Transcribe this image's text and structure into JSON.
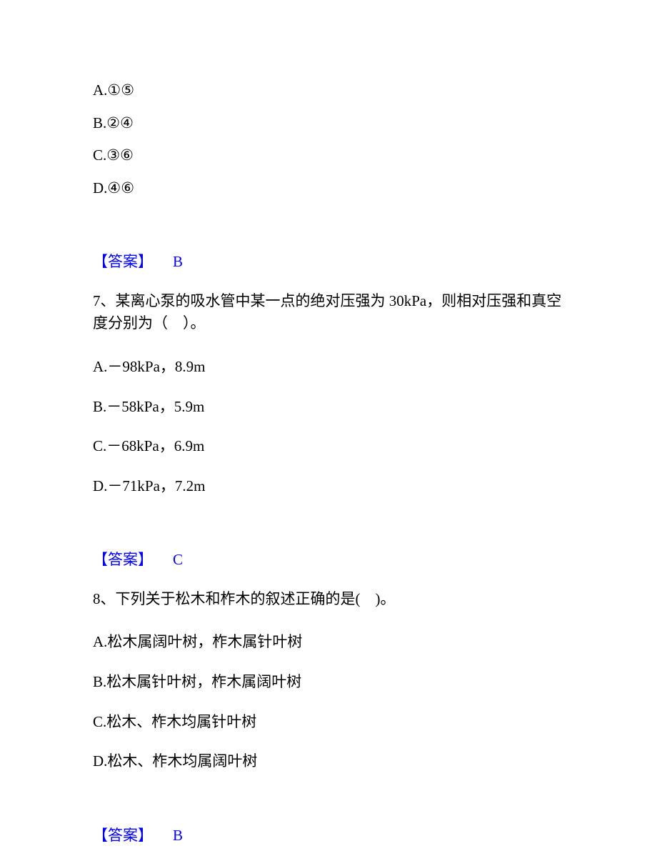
{
  "q6_fragment": {
    "options": [
      {
        "label": "A.",
        "content": "①⑤"
      },
      {
        "label": "B.",
        "content": "②④"
      },
      {
        "label": "C.",
        "content": "③⑥"
      },
      {
        "label": "D.",
        "content": "④⑥"
      }
    ],
    "answer_bracket": "【答案】",
    "answer_letter": "B"
  },
  "q7": {
    "number": "7、",
    "text": "某离心泵的吸水管中某一点的绝对压强为 30kPa，则相对压强和真空度分别为（　）。",
    "options": [
      {
        "label": "A.",
        "content": "－98kPa，8.9m"
      },
      {
        "label": "B.",
        "content": "－58kPa，5.9m"
      },
      {
        "label": "C.",
        "content": "－68kPa，6.9m"
      },
      {
        "label": "D.",
        "content": "－71kPa，7.2m"
      }
    ],
    "answer_bracket": "【答案】",
    "answer_letter": "C"
  },
  "q8": {
    "number": "8、",
    "text": "下列关于松木和柞木的叙述正确的是(　)。",
    "options": [
      {
        "label": "A.",
        "content": "松木属阔叶树，柞木属针叶树"
      },
      {
        "label": "B.",
        "content": "松木属针叶树，柞木属阔叶树"
      },
      {
        "label": "C.",
        "content": "松木、柞木均属针叶树"
      },
      {
        "label": "D.",
        "content": "松木、柞木均属阔叶树"
      }
    ],
    "answer_bracket": "【答案】",
    "answer_letter": "B"
  },
  "colors": {
    "text": "#000000",
    "answer": "#0000ff",
    "background": "#ffffff"
  }
}
